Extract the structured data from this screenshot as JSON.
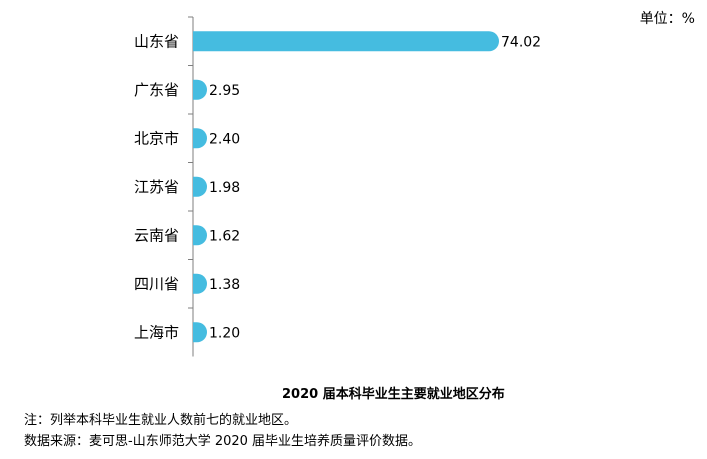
{
  "chart_data": {
    "type": "bar",
    "orientation": "horizontal",
    "title": "2020 届本科毕业生主要就业地区分布",
    "unit_label": "单位：%",
    "categories": [
      "山东省",
      "广东省",
      "北京市",
      "江苏省",
      "云南省",
      "四川省",
      "上海市"
    ],
    "values": [
      74.02,
      2.95,
      2.4,
      1.98,
      1.62,
      1.38,
      1.2
    ],
    "value_labels": [
      "74.02",
      "2.95",
      "2.40",
      "1.98",
      "1.62",
      "1.38",
      "1.20"
    ],
    "xlim": [
      0,
      80
    ],
    "grid": false,
    "legend": "none",
    "bar_color": "#45BCE0"
  },
  "notes": {
    "note": "注：列举本科毕业生就业人数前七的就业地区。",
    "source": "数据来源：麦可思-山东师范大学 2020 届毕业生培养质量评价数据。"
  }
}
